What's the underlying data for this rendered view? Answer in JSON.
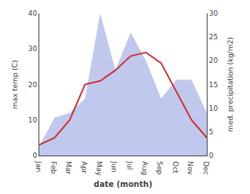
{
  "chart_data": {
    "type": "line",
    "categories": [
      "Jan",
      "Feb",
      "Mar",
      "Apr",
      "May",
      "Jun",
      "Jul",
      "Aug",
      "Sep",
      "Oct",
      "Nov",
      "Dec"
    ],
    "xlabel": "date (month)",
    "ylabel": "max temp (C)",
    "y2label": "med. precipitation (kg/m2)",
    "series": [
      {
        "type": "area",
        "axis": "y2",
        "color": "#c0c8ee",
        "values": [
          2,
          8,
          9,
          12,
          30,
          18,
          26,
          20,
          12,
          16,
          16,
          9
        ]
      },
      {
        "type": "line",
        "color": "#cc3333",
        "values": [
          3,
          5,
          10,
          20,
          21,
          24,
          28,
          29,
          26,
          18,
          10,
          5
        ]
      }
    ],
    "ylim": [
      0,
      40
    ],
    "yticks": [
      0,
      10,
      20,
      30,
      40
    ],
    "y2lim": [
      0,
      30
    ],
    "y2ticks": [
      0,
      5,
      10,
      15,
      20,
      25,
      30
    ],
    "grid": false
  }
}
